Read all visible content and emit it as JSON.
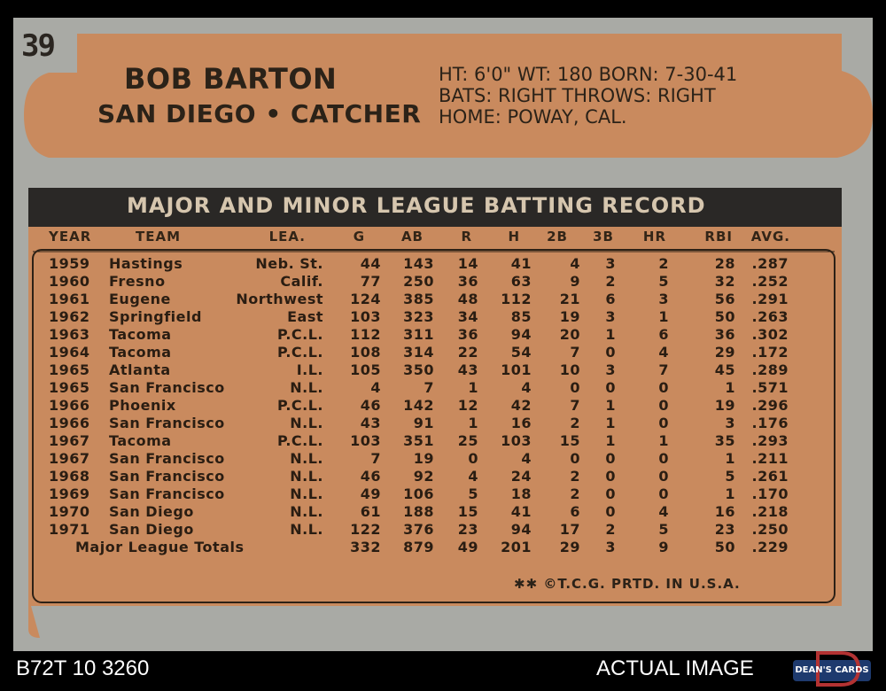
{
  "card_number": "39",
  "player": {
    "name": "BOB BARTON",
    "team_position": "SAN DIEGO • CATCHER",
    "info_line1": "HT: 6'0\"   WT: 180   BORN: 7-30-41",
    "info_line2": "BATS: RIGHT          THROWS: RIGHT",
    "info_line3": "HOME: POWAY, CAL."
  },
  "record_title": "MAJOR AND MINOR LEAGUE BATTING RECORD",
  "columns": [
    "YEAR",
    "TEAM",
    "LEA.",
    "G",
    "AB",
    "R",
    "H",
    "2B",
    "3B",
    "HR",
    "RBI",
    "AVG."
  ],
  "rows": [
    [
      "1959",
      "Hastings",
      "Neb. St.",
      "44",
      "143",
      "14",
      "41",
      "4",
      "3",
      "2",
      "28",
      ".287"
    ],
    [
      "1960",
      "Fresno",
      "Calif.",
      "77",
      "250",
      "36",
      "63",
      "9",
      "2",
      "5",
      "32",
      ".252"
    ],
    [
      "1961",
      "Eugene",
      "Northwest",
      "124",
      "385",
      "48",
      "112",
      "21",
      "6",
      "3",
      "56",
      ".291"
    ],
    [
      "1962",
      "Springfield",
      "East",
      "103",
      "323",
      "34",
      "85",
      "19",
      "3",
      "1",
      "50",
      ".263"
    ],
    [
      "1963",
      "Tacoma",
      "P.C.L.",
      "112",
      "311",
      "36",
      "94",
      "20",
      "1",
      "6",
      "36",
      ".302"
    ],
    [
      "1964",
      "Tacoma",
      "P.C.L.",
      "108",
      "314",
      "22",
      "54",
      "7",
      "0",
      "4",
      "29",
      ".172"
    ],
    [
      "1965",
      "Atlanta",
      "I.L.",
      "105",
      "350",
      "43",
      "101",
      "10",
      "3",
      "7",
      "45",
      ".289"
    ],
    [
      "1965",
      "San Francisco",
      "N.L.",
      "4",
      "7",
      "1",
      "4",
      "0",
      "0",
      "0",
      "1",
      ".571"
    ],
    [
      "1966",
      "Phoenix",
      "P.C.L.",
      "46",
      "142",
      "12",
      "42",
      "7",
      "1",
      "0",
      "19",
      ".296"
    ],
    [
      "1966",
      "San Francisco",
      "N.L.",
      "43",
      "91",
      "1",
      "16",
      "2",
      "1",
      "0",
      "3",
      ".176"
    ],
    [
      "1967",
      "Tacoma",
      "P.C.L.",
      "103",
      "351",
      "25",
      "103",
      "15",
      "1",
      "1",
      "35",
      ".293"
    ],
    [
      "1967",
      "San Francisco",
      "N.L.",
      "7",
      "19",
      "0",
      "4",
      "0",
      "0",
      "0",
      "1",
      ".211"
    ],
    [
      "1968",
      "San Francisco",
      "N.L.",
      "46",
      "92",
      "4",
      "24",
      "2",
      "0",
      "0",
      "5",
      ".261"
    ],
    [
      "1969",
      "San Francisco",
      "N.L.",
      "49",
      "106",
      "5",
      "18",
      "2",
      "0",
      "0",
      "1",
      ".170"
    ],
    [
      "1970",
      "San Diego",
      "N.L.",
      "61",
      "188",
      "15",
      "41",
      "6",
      "0",
      "4",
      "16",
      ".218"
    ],
    [
      "1971",
      "San Diego",
      "N.L.",
      "122",
      "376",
      "23",
      "94",
      "17",
      "2",
      "5",
      "23",
      ".250"
    ]
  ],
  "totals": {
    "label": "Major League Totals",
    "values": [
      "332",
      "879",
      "49",
      "201",
      "29",
      "3",
      "9",
      "50",
      ".229"
    ]
  },
  "footer": "✱✱ ©T.C.G. PRTD. IN U.S.A.",
  "listing_code": "B72T 10 3260",
  "actual_image_label": "ACTUAL IMAGE",
  "logo_text": "DEAN'S CARDS",
  "colors": {
    "card_stock": "#a9aaa5",
    "orange_panel": "#c98a5e",
    "dark_band": "#2a2826",
    "ink": "#2b2218"
  }
}
